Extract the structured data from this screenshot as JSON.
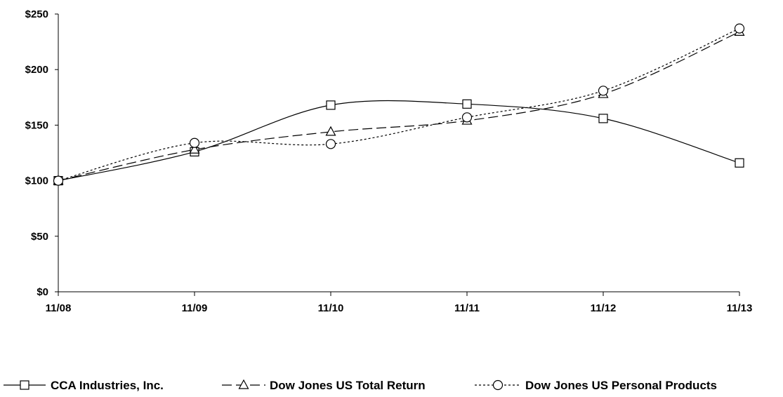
{
  "chart_data": {
    "type": "line",
    "title": "",
    "xlabel": "",
    "ylabel": "",
    "categories": [
      "11/08",
      "11/09",
      "11/10",
      "11/11",
      "11/12",
      "11/13"
    ],
    "ylim": [
      0,
      250
    ],
    "yticks": [
      0,
      50,
      100,
      150,
      200,
      250
    ],
    "ytick_labels": [
      "$0",
      "$50",
      "$100",
      "$150",
      "$200",
      "$250"
    ],
    "grid": false,
    "legend_position": "bottom",
    "series": [
      {
        "name": "CCA Industries, Inc.",
        "marker": "square",
        "dash": "solid",
        "values": [
          100,
          126,
          168,
          169,
          156,
          116
        ]
      },
      {
        "name": "Dow Jones US Total Return",
        "marker": "triangle",
        "dash": "dashed",
        "values": [
          100,
          128,
          144,
          154,
          178,
          234
        ]
      },
      {
        "name": "Dow Jones US Personal Products",
        "marker": "circle",
        "dash": "dotted",
        "values": [
          100,
          134,
          133,
          157,
          181,
          237
        ]
      }
    ]
  }
}
